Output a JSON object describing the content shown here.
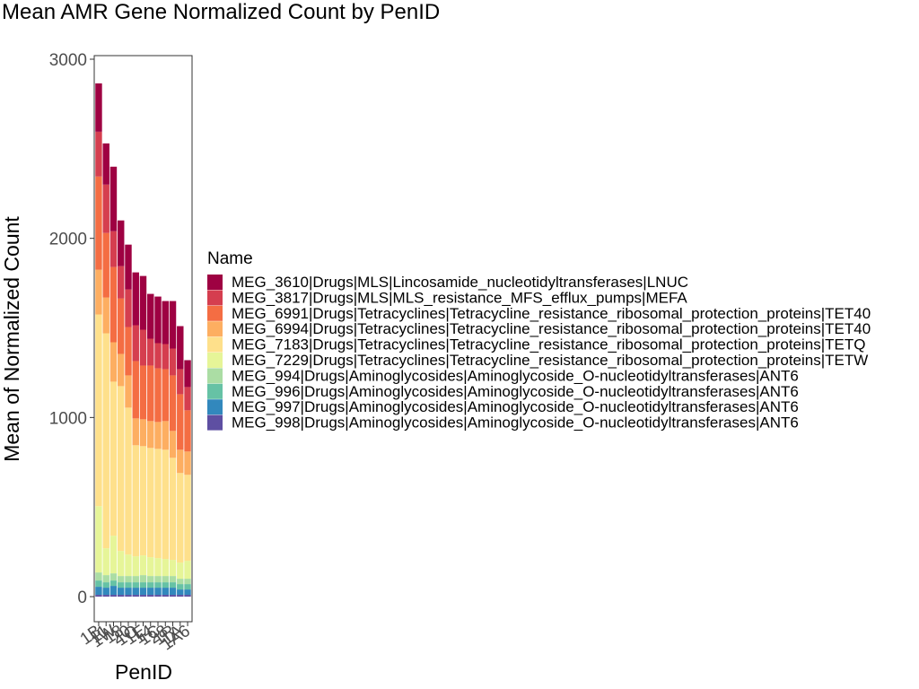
{
  "chart_data": {
    "type": "bar",
    "stacked": true,
    "title": "Mean AMR Gene Normalized Count by PenID",
    "xlabel": "PenID",
    "ylabel": "Mean of Normalized Count",
    "ylim": [
      -140,
      3020
    ],
    "yticks": [
      0,
      1000,
      2000,
      3000
    ],
    "grid": false,
    "legend_title": "Name",
    "legend_position": "right",
    "categories": [
      "1B",
      "11",
      "1W",
      "18",
      "20",
      "1O",
      "1E",
      "14",
      "1C",
      "28",
      "1R",
      "1A",
      "1A6"
    ],
    "series": [
      {
        "name": "MEG_998|Drugs|Aminoglycosides|Aminoglycoside_O-nucleotidyltransferases|ANT6",
        "color": "#5E4FA2",
        "values": [
          10,
          10,
          10,
          10,
          10,
          10,
          10,
          10,
          10,
          10,
          10,
          10,
          10
        ]
      },
      {
        "name": "MEG_997|Drugs|Aminoglycosides|Aminoglycoside_O-nucleotidyltransferases|ANT6",
        "color": "#3288BD",
        "values": [
          45,
          40,
          50,
          40,
          40,
          40,
          40,
          40,
          40,
          40,
          40,
          30,
          30
        ]
      },
      {
        "name": "MEG_996|Drugs|Aminoglycosides|Aminoglycoside_O-nucleotidyltransferases|ANT6",
        "color": "#66C2A5",
        "values": [
          35,
          30,
          30,
          30,
          30,
          30,
          30,
          30,
          30,
          30,
          30,
          30,
          30
        ]
      },
      {
        "name": "MEG_994|Drugs|Aminoglycosides|Aminoglycoside_O-nucleotidyltransferases|ANT6",
        "color": "#ABDDA4",
        "values": [
          45,
          40,
          40,
          35,
          35,
          35,
          40,
          35,
          35,
          35,
          35,
          30,
          30
        ]
      },
      {
        "name": "MEG_7229|Drugs|Tetracyclines|Tetracycline_resistance_ribosomal_protection_proteins|TETW",
        "color": "#E6F598",
        "values": [
          370,
          150,
          210,
          140,
          120,
          110,
          110,
          105,
          100,
          95,
          90,
          90,
          100
        ]
      },
      {
        "name": "MEG_7183|Drugs|Tetracyclines|Tetracycline_resistance_ribosomal_protection_proteins|TETQ",
        "color": "#FEE08B",
        "values": [
          1070,
          1200,
          860,
          920,
          820,
          620,
          610,
          610,
          610,
          610,
          570,
          500,
          480
        ]
      },
      {
        "name": "MEG_6994|Drugs|Tetracyclines|Tetracycline_resistance_ribosomal_protection_proteins|TET40",
        "color": "#FDAE61",
        "values": [
          250,
          200,
          220,
          180,
          180,
          150,
          150,
          150,
          150,
          160,
          150,
          130,
          130
        ]
      },
      {
        "name": "MEG_6991|Drugs|Tetracyclines|Tetracycline_resistance_ribosomal_protection_proteins|TET40",
        "color": "#F46D43",
        "values": [
          520,
          360,
          420,
          310,
          270,
          320,
          300,
          310,
          300,
          290,
          310,
          310,
          230
        ]
      },
      {
        "name": "MEG_3817|Drugs|MLS|MLS_resistance_MFS_efflux_pumps|MEFA",
        "color": "#D53E4F",
        "values": [
          250,
          270,
          200,
          180,
          210,
          200,
          200,
          150,
          140,
          140,
          150,
          140,
          130
        ]
      },
      {
        "name": "MEG_3610|Drugs|MLS|Lincosamide_nucleotidyltransferases|LNUC",
        "color": "#9E0142",
        "values": [
          270,
          230,
          360,
          255,
          250,
          295,
          300,
          250,
          260,
          240,
          265,
          240,
          150
        ]
      }
    ]
  }
}
